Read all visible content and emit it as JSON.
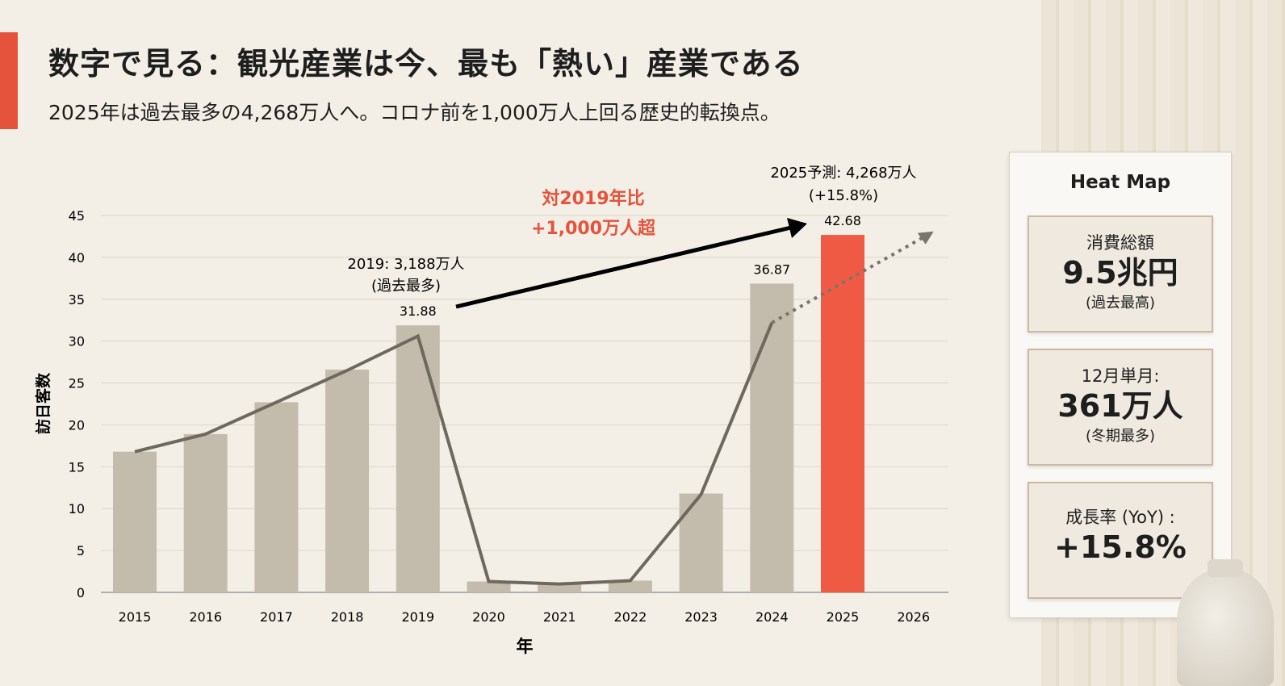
{
  "header": {
    "title": "数字で見る：観光産業は今、最も「熱い」産業である",
    "subtitle": "2025年は過去最多の4,268万人へ。コロナ前を1,000万人上回る歴史的転換点。"
  },
  "chart_data": {
    "type": "bar",
    "categories": [
      "2015",
      "2016",
      "2017",
      "2018",
      "2019",
      "2020",
      "2021",
      "2022",
      "2023",
      "2024",
      "2025",
      "2026"
    ],
    "values": [
      16.8,
      18.9,
      22.7,
      26.6,
      31.88,
      1.3,
      1.0,
      1.4,
      11.8,
      36.87,
      42.68,
      null
    ],
    "highlight_category": "2025",
    "bar_color": "#c3bbac",
    "highlight_color": "#ef5a44",
    "line": {
      "values": [
        16.8,
        18.9,
        22.7,
        26.5,
        30.6,
        1.3,
        1.0,
        1.4,
        11.7,
        32.2,
        null,
        null
      ],
      "color": "#6e685e"
    },
    "projection": {
      "from": [
        "2024",
        32.2
      ],
      "to": [
        "2026",
        43.1
      ],
      "style": "dotted"
    },
    "data_labels": {
      "2019": "31.88",
      "2024": "36.87",
      "2025": "42.68"
    },
    "xlabel": "年",
    "ylabel": "訪日客数",
    "ylim": [
      0,
      45
    ],
    "yticks": [
      0,
      5,
      10,
      15,
      20,
      25,
      30,
      35,
      40,
      45
    ],
    "grid": true,
    "annotations": {
      "a2019": [
        "2019: 3,188万人",
        "(過去最多)"
      ],
      "a2025": [
        "2025予測: 4,268万人",
        "(+15.8%)"
      ],
      "growth": [
        "対2019年比",
        "+1,000万人超"
      ],
      "growth_color": "#e5533d"
    }
  },
  "heatmap": {
    "title": "Heat Map",
    "cards": [
      {
        "label": "消費総額",
        "value": "9.5兆円",
        "note": "(過去最高)"
      },
      {
        "label": "12月単月:",
        "value": "361万人",
        "note": "(冬期最多)"
      },
      {
        "label": "成長率 (YoY) :",
        "value": "+15.8%",
        "note": ""
      }
    ]
  }
}
